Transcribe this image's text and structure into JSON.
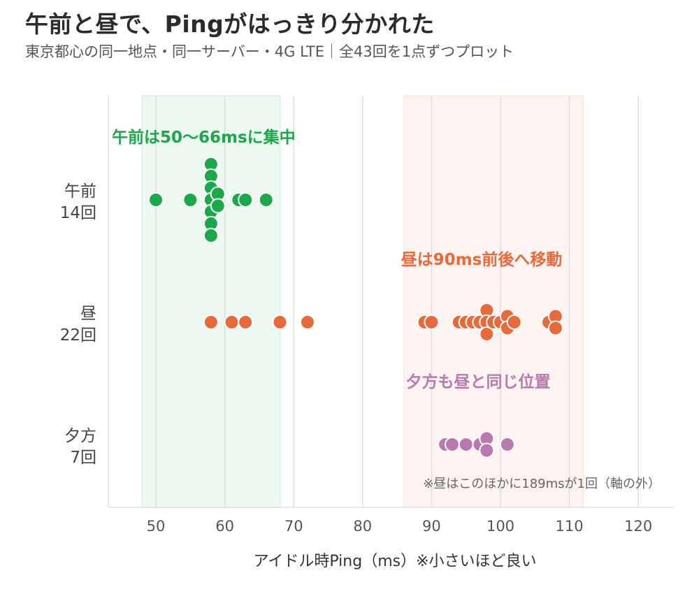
{
  "title": "午前と昼で、Pingがはっきり分かれた",
  "subtitle": "東京都心の同一地点・同一サーバー・4G LTE｜全43回を1点ずつプロット",
  "chart_data": {
    "type": "scatter",
    "xlabel": "アイドル時Ping（ms）※小さいほど良い",
    "xlim": [
      43,
      125
    ],
    "xticks": [
      50,
      60,
      70,
      80,
      90,
      100,
      110,
      120
    ],
    "grid": true,
    "categories": [
      {
        "line1": "午前",
        "line2": "14回"
      },
      {
        "line1": "昼",
        "line2": "22回"
      },
      {
        "line1": "夕方",
        "line2": "7回"
      }
    ],
    "series": [
      {
        "color": "#1aa84a",
        "values": [
          50,
          55,
          58,
          58,
          58,
          58,
          58,
          58,
          58,
          59,
          59,
          62,
          63,
          66
        ]
      },
      {
        "color": "#e8693a",
        "values": [
          58,
          61,
          63,
          68,
          72,
          89,
          90,
          94,
          95,
          96,
          97,
          98,
          98,
          98,
          99,
          100,
          101,
          101,
          102,
          107,
          108,
          108
        ]
      },
      {
        "color": "#b87aae",
        "values": [
          92,
          93,
          95,
          97,
          98,
          98,
          101
        ]
      }
    ],
    "bands": [
      {
        "from": 48,
        "to": 68,
        "color": "#1aa84a"
      },
      {
        "from": 86,
        "to": 112,
        "color": "#e8693a"
      }
    ],
    "annotations": [
      {
        "text": "午前は50〜66msに集中",
        "color": "#1aa84a"
      },
      {
        "text": "昼は90ms前後へ移動",
        "color": "#e8693a"
      },
      {
        "text": "夕方も昼と同じ位置",
        "color": "#b87aae"
      }
    ],
    "footnote": "※昼はこのほかに189msが1回（軸の外）"
  }
}
